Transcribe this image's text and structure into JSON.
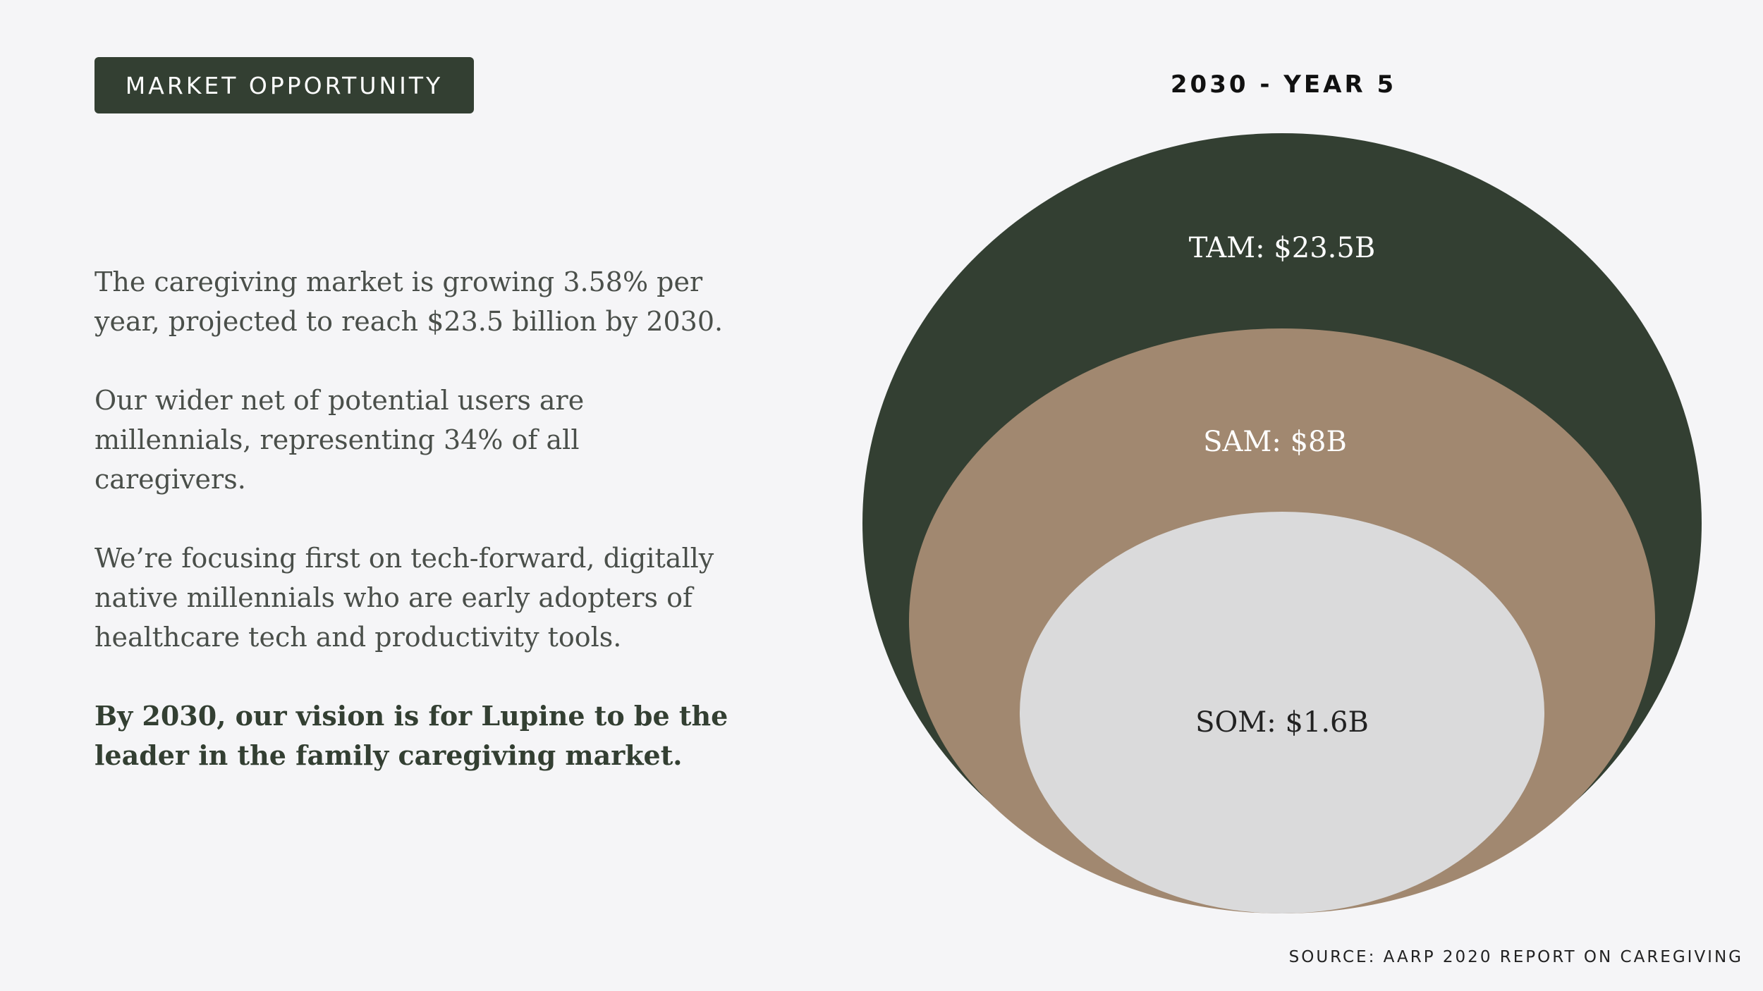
{
  "header": {
    "tag_label": "MARKET OPPORTUNITY"
  },
  "body": {
    "paragraphs": [
      "The caregiving market is growing 3.58% per year, projected to reach $23.5 billion by 2030.",
      "Our wider net of potential users are millennials, representing 34% of all caregivers.",
      "We’re focusing first on tech-forward, digitally native millennials who are early adopters of healthcare tech and productivity tools."
    ],
    "vision": "By 2030, our vision is for Lupine to be the leader in the family caregiving market."
  },
  "diagram": {
    "title": "2030 - YEAR 5",
    "rings": [
      {
        "label": "TAM: $23.5B",
        "value_billion": 23.5,
        "color": "#333f32",
        "text_color": "#ffffff"
      },
      {
        "label": "SAM: $8B",
        "value_billion": 8,
        "color": "#a18870",
        "text_color": "#ffffff"
      },
      {
        "label": "SOM: $1.6B",
        "value_billion": 1.6,
        "color": "#dadadb",
        "text_color": "#222222"
      }
    ]
  },
  "footer": {
    "source": "SOURCE: AARP 2020 REPORT ON CAREGIVING"
  }
}
